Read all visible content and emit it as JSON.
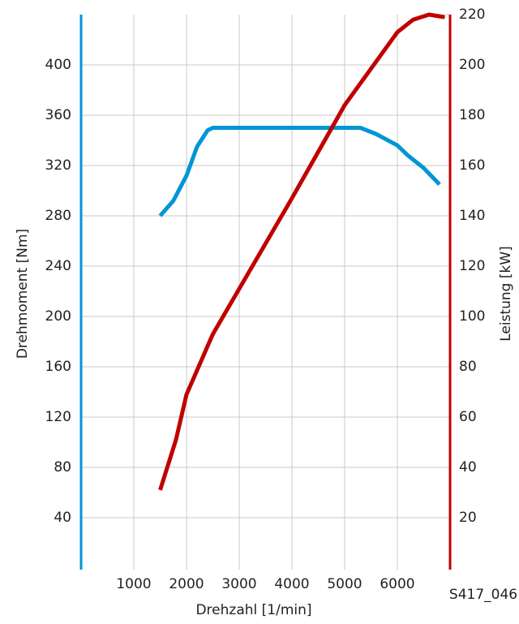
{
  "chart_data": {
    "type": "line",
    "ylabel": "Drehmoment [Nm]",
    "y2label": "Leistung [kW]",
    "xlabel": "Drehzahl [1/min]",
    "annotation": "S417_046",
    "xlim": [
      0,
      7000
    ],
    "xticks": [
      1000,
      2000,
      3000,
      4000,
      5000,
      6000
    ],
    "ylim": [
      0,
      440
    ],
    "yticks": [
      40,
      80,
      120,
      160,
      200,
      240,
      280,
      320,
      360,
      400
    ],
    "y2lim": [
      0,
      220
    ],
    "y2ticks": [
      20,
      40,
      60,
      80,
      100,
      120,
      140,
      160,
      180,
      200,
      220
    ],
    "grid": true,
    "y_axis_color": "#0096d6",
    "y2_axis_color": "#c00000",
    "series": [
      {
        "color": "#0096d6",
        "x": [
          1500,
          1750,
          2000,
          2200,
          2400,
          2500,
          3000,
          4000,
          5000,
          5300,
          5600,
          6000,
          6200,
          6500,
          6800
        ],
        "values": [
          280,
          292,
          312,
          335,
          348,
          350,
          350,
          350,
          350,
          350,
          345,
          336,
          328,
          318,
          305
        ]
      },
      {
        "color": "#c00000",
        "axis": "y2",
        "x": [
          1500,
          1800,
          2000,
          2500,
          3000,
          4000,
          5000,
          6000,
          6300,
          6600,
          6900
        ],
        "values": [
          31,
          51,
          69,
          93,
          111,
          147,
          184,
          213,
          218,
          220,
          219
        ]
      }
    ]
  }
}
